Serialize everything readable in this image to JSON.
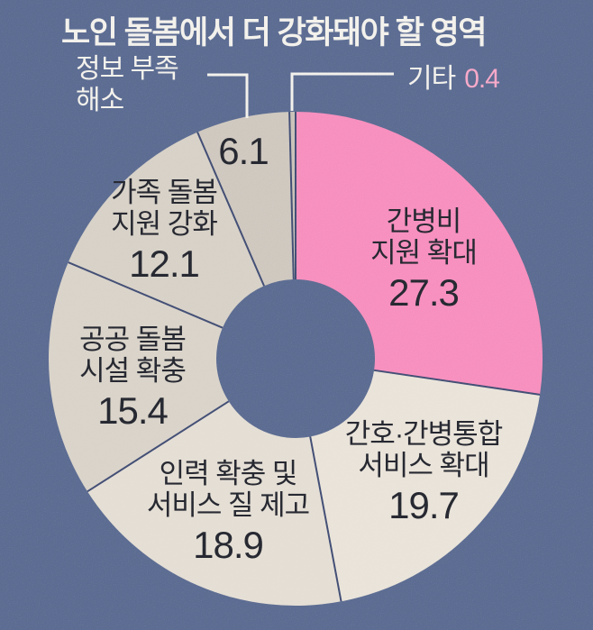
{
  "title": "노인 돌봄에서 더 강화돼야 할 영역",
  "colors": {
    "background": "#5b6b91",
    "separator": "#414d74",
    "callout_line": "#f3f1ec",
    "slice_text": "#24262f",
    "title_text": "#f3f1ec",
    "etc_value_text": "#f7a8c8"
  },
  "chart_data": {
    "type": "pie",
    "subtype": "donut",
    "title": "노인 돌봄에서 더 강화돼야 할 영역",
    "unit": "%",
    "start_angle_deg": 0,
    "direction": "clockwise",
    "legend_position": "labels-on-slices",
    "segments": [
      {
        "name": "간병비 지원 확대",
        "name_lines": [
          "간병비",
          "지원 확대"
        ],
        "value": 27.3,
        "value_label": "27.3",
        "color": "#f78fbe"
      },
      {
        "name": "간호·간병통합 서비스 확대",
        "name_lines": [
          "간호·간병통합",
          "서비스 확대"
        ],
        "value": 19.7,
        "value_label": "19.7",
        "color": "#e9e3d9"
      },
      {
        "name": "인력 확충 및 서비스 질 제고",
        "name_lines": [
          "인력 확충 및",
          "서비스 질 제고"
        ],
        "value": 18.9,
        "value_label": "18.9",
        "color": "#e4ded4"
      },
      {
        "name": "공공 돌봄 시설 확충",
        "name_lines": [
          "공공 돌봄",
          "시설 확충"
        ],
        "value": 15.4,
        "value_label": "15.4",
        "color": "#d9d3c9"
      },
      {
        "name": "가족 돌봄 지원 강화",
        "name_lines": [
          "가족 돌봄",
          "지원 강화"
        ],
        "value": 12.1,
        "value_label": "12.1",
        "color": "#d7d1c7"
      },
      {
        "name": "정보 부족 해소",
        "name_lines": [
          "정보 부족",
          "해소"
        ],
        "value": 6.1,
        "value_label": "6.1",
        "color": "#cfc8bf"
      },
      {
        "name": "기타",
        "name_lines": [
          "기타"
        ],
        "value": 0.4,
        "value_label": "0.4",
        "color": "#c9c2b9"
      }
    ]
  }
}
